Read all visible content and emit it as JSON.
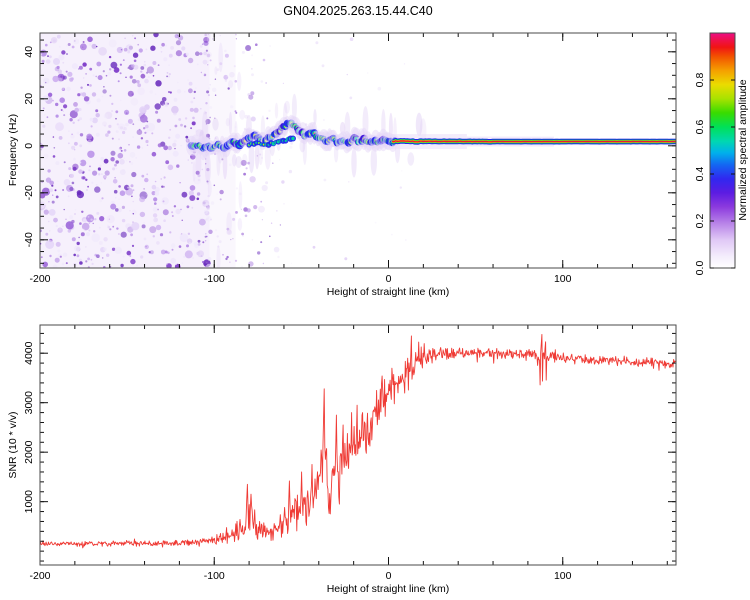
{
  "title": "GN04.2025.263.15.44.C40",
  "palette": {
    "snr_line": "#ef3b35",
    "frame": "#4a4a4a",
    "tick": "#111111",
    "text": "#000000",
    "noise_colors": [
      "#efe7fb",
      "#e3d3f7",
      "#cdaff0",
      "#b48ae6",
      "#9a63d8",
      "#7c39c8",
      "#6526bb"
    ],
    "track": {
      "halo": "#e6d8f8",
      "blue": "#1e24ea",
      "green": "#00d84e",
      "cyan": "#00d2a0",
      "yellow": "#dde300",
      "red": "#ee2020",
      "core_after": "#ee1536"
    }
  },
  "chart_data": [
    {
      "type": "heatmap",
      "title": "GN04.2025.263.15.44.C40",
      "xlabel": "Height of straight line (km)",
      "ylabel": "Frequency (Hz)",
      "xlim": [
        -200,
        165
      ],
      "ylim": [
        -52,
        48
      ],
      "xticks": {
        "major": [
          -200,
          -100,
          0,
          100
        ],
        "major_labels": [
          "-200",
          "-100",
          "0",
          "100"
        ],
        "minor_step": 20
      },
      "yticks": {
        "major": [
          -40,
          -20,
          0,
          20,
          40
        ],
        "major_labels": [
          "-40",
          "-20",
          "0",
          "20",
          "40"
        ],
        "minor_step": 5
      },
      "grid": false,
      "legend": "none",
      "colorbar": {
        "label": "Normalized spectral amplitude",
        "range": [
          0,
          1
        ],
        "ticks": [
          0,
          0.2,
          0.4,
          0.6,
          0.8
        ],
        "tick_labels": [
          "0.0",
          "0.2",
          "0.4",
          "0.6",
          "0.8"
        ],
        "stops": [
          [
            0.0,
            "#ffffff"
          ],
          [
            0.05,
            "#f4edfc"
          ],
          [
            0.12,
            "#e0c8f6"
          ],
          [
            0.19,
            "#b883e8"
          ],
          [
            0.26,
            "#8c3ade"
          ],
          [
            0.32,
            "#5c1ce2"
          ],
          [
            0.38,
            "#3028f0"
          ],
          [
            0.44,
            "#1368f2"
          ],
          [
            0.49,
            "#00b0ec"
          ],
          [
            0.54,
            "#00d8b0"
          ],
          [
            0.6,
            "#00e058"
          ],
          [
            0.66,
            "#38dc00"
          ],
          [
            0.72,
            "#a8e200"
          ],
          [
            0.78,
            "#eadc00"
          ],
          [
            0.84,
            "#f5a000"
          ],
          [
            0.9,
            "#f25200"
          ],
          [
            0.94,
            "#f01414"
          ],
          [
            0.98,
            "#ee0f5e"
          ],
          [
            1.0,
            "#ed0e86"
          ]
        ]
      },
      "noise_field": {
        "x_range": [
          -200,
          -105
        ],
        "fade_end": -78,
        "description": "dense low-amplitude purple speckle noise covering all frequencies, fading out above -105 km"
      },
      "signal_track": {
        "description": "narrow high-amplitude Doppler track near 0 Hz; wobbly blobs from -113 to 0 km, smooth continuous stripe (red core, green band, blue edges, purple halo) from 0 to 165 km",
        "points": [
          [
            -113,
            -0.5,
            0.5
          ],
          [
            -110,
            0.8,
            0.55
          ],
          [
            -107,
            -1.2,
            0.6
          ],
          [
            -104,
            0.5,
            0.65
          ],
          [
            -101,
            -0.8,
            0.6
          ],
          [
            -98,
            1.2,
            0.65
          ],
          [
            -95,
            -1.5,
            0.7
          ],
          [
            -92,
            0.3,
            0.65
          ],
          [
            -89,
            1.8,
            0.7
          ],
          [
            -86,
            0.5,
            0.72
          ],
          [
            -83,
            2.2,
            0.75
          ],
          [
            -80,
            3.8,
            0.8
          ],
          [
            -77,
            4.6,
            0.78
          ],
          [
            -74,
            3.0,
            0.72
          ],
          [
            -71,
            2.0,
            0.7
          ],
          [
            -68,
            3.5,
            0.75
          ],
          [
            -65,
            5.5,
            0.78
          ],
          [
            -62,
            7.0,
            0.8
          ],
          [
            -59,
            8.5,
            0.82
          ],
          [
            -56,
            9.6,
            0.8
          ],
          [
            -53,
            7.8,
            0.72
          ],
          [
            -50,
            5.5,
            0.75
          ],
          [
            -47,
            4.0,
            0.8
          ],
          [
            -44,
            5.8,
            0.85
          ],
          [
            -41,
            4.2,
            0.88
          ],
          [
            -38,
            3.0,
            0.85
          ],
          [
            -35,
            2.2,
            0.82
          ],
          [
            -32,
            3.6,
            0.86
          ],
          [
            -29,
            1.6,
            0.82
          ],
          [
            -26,
            2.8,
            0.86
          ],
          [
            -23,
            0.8,
            0.82
          ],
          [
            -20,
            3.4,
            0.9
          ],
          [
            -17,
            1.4,
            0.86
          ],
          [
            -14,
            2.6,
            0.9
          ],
          [
            -11,
            1.2,
            0.87
          ],
          [
            -8,
            2.4,
            0.9
          ],
          [
            -5,
            1.6,
            0.9
          ],
          [
            -2,
            2.2,
            0.92
          ],
          [
            2,
            1.8,
            0.94
          ],
          [
            6,
            2.0,
            0.95
          ],
          [
            15,
            1.9,
            0.96
          ],
          [
            30,
            1.9,
            0.97
          ],
          [
            60,
            1.8,
            0.97
          ],
          [
            100,
            1.8,
            0.97
          ],
          [
            165,
            1.8,
            0.97
          ]
        ],
        "secondary_branch": [
          [
            -80,
            0.4
          ],
          [
            -75,
            1.0
          ],
          [
            -70,
            0.4
          ],
          [
            -66,
            1.2
          ],
          [
            -62,
            1.8
          ],
          [
            -58,
            2.6
          ],
          [
            -55,
            3.4
          ]
        ]
      }
    },
    {
      "type": "line",
      "xlabel": "Height of straight line (km)",
      "ylabel": "SNR (10 * v/v)",
      "xlim": [
        -200,
        165
      ],
      "ylim": [
        -280,
        4570
      ],
      "xticks": {
        "major": [
          -200,
          -100,
          0,
          100
        ],
        "major_labels": [
          "-200",
          "-100",
          "0",
          "100"
        ],
        "minor_step": 20
      },
      "yticks": {
        "major": [
          1000,
          2000,
          3000,
          4000
        ],
        "major_labels": [
          "1000",
          "2000",
          "3000",
          "4000"
        ],
        "minor_step": 200
      },
      "grid": false,
      "legend": "none",
      "series": [
        {
          "name": "SNR",
          "color": "#ef3b35",
          "baseline": [
            [
              -200,
              150
            ],
            [
              -150,
              155
            ],
            [
              -125,
              160
            ],
            [
              -112,
              180
            ],
            [
              -105,
              220
            ],
            [
              -98,
              260
            ],
            [
              -92,
              300
            ],
            [
              -86,
              420
            ],
            [
              -82,
              600
            ],
            [
              -79,
              750
            ],
            [
              -76,
              500
            ],
            [
              -72,
              380
            ],
            [
              -68,
              360
            ],
            [
              -64,
              430
            ],
            [
              -60,
              520
            ],
            [
              -56,
              660
            ],
            [
              -52,
              800
            ],
            [
              -48,
              950
            ],
            [
              -45,
              1100
            ],
            [
              -42,
              1350
            ],
            [
              -39,
              1800
            ],
            [
              -37,
              2200
            ],
            [
              -35,
              1450
            ],
            [
              -33,
              1250
            ],
            [
              -31,
              1650
            ],
            [
              -29,
              1500
            ],
            [
              -27,
              1850
            ],
            [
              -25,
              1700
            ],
            [
              -23,
              2050
            ],
            [
              -21,
              1900
            ],
            [
              -19,
              2250
            ],
            [
              -17,
              2100
            ],
            [
              -15,
              2400
            ],
            [
              -13,
              2300
            ],
            [
              -11,
              2550
            ],
            [
              -9,
              2700
            ],
            [
              -7,
              2850
            ],
            [
              -5,
              2950
            ],
            [
              -3,
              3050
            ],
            [
              -1,
              3150
            ],
            [
              1,
              3250
            ],
            [
              3,
              3350
            ],
            [
              5,
              3430
            ],
            [
              8,
              3550
            ],
            [
              11,
              3680
            ],
            [
              14,
              3780
            ],
            [
              17,
              3860
            ],
            [
              20,
              3920
            ],
            [
              25,
              3970
            ],
            [
              35,
              4010
            ],
            [
              50,
              4000
            ],
            [
              65,
              3980
            ],
            [
              80,
              3960
            ],
            [
              90,
              3930
            ],
            [
              105,
              3900
            ],
            [
              120,
              3870
            ],
            [
              135,
              3840
            ],
            [
              150,
              3820
            ],
            [
              165,
              3800
            ]
          ],
          "noise_amplitude": [
            [
              -200,
              55
            ],
            [
              -130,
              60
            ],
            [
              -110,
              80
            ],
            [
              -100,
              110
            ],
            [
              -90,
              180
            ],
            [
              -84,
              300
            ],
            [
              -78,
              360
            ],
            [
              -72,
              220
            ],
            [
              -64,
              260
            ],
            [
              -56,
              360
            ],
            [
              -50,
              430
            ],
            [
              -44,
              520
            ],
            [
              -40,
              620
            ],
            [
              -36,
              680
            ],
            [
              -30,
              600
            ],
            [
              -24,
              580
            ],
            [
              -18,
              560
            ],
            [
              -12,
              520
            ],
            [
              -6,
              480
            ],
            [
              0,
              450
            ],
            [
              6,
              470
            ],
            [
              12,
              500
            ],
            [
              18,
              360
            ],
            [
              24,
              210
            ],
            [
              30,
              150
            ],
            [
              40,
              120
            ],
            [
              60,
              110
            ],
            [
              85,
              150
            ],
            [
              95,
              130
            ],
            [
              120,
              110
            ],
            [
              165,
              120
            ]
          ],
          "spikes": [
            [
              -81,
              1350
            ],
            [
              -79,
              1150
            ],
            [
              -57,
              1420
            ],
            [
              -50,
              1600
            ],
            [
              -44,
              1750
            ],
            [
              -37,
              3280
            ],
            [
              -30,
              2750
            ],
            [
              -26,
              2550
            ],
            [
              -21,
              2800
            ],
            [
              -18,
              2950
            ],
            [
              -15,
              2800
            ],
            [
              11,
              3900
            ],
            [
              13,
              4350
            ],
            [
              88,
              4380
            ],
            [
              90,
              4230
            ]
          ],
          "dips": [
            [
              -99,
              140
            ],
            [
              -75,
              240
            ],
            [
              -47,
              520
            ],
            [
              -34,
              760
            ],
            [
              -28,
              950
            ],
            [
              87,
              3360
            ]
          ]
        }
      ]
    }
  ]
}
